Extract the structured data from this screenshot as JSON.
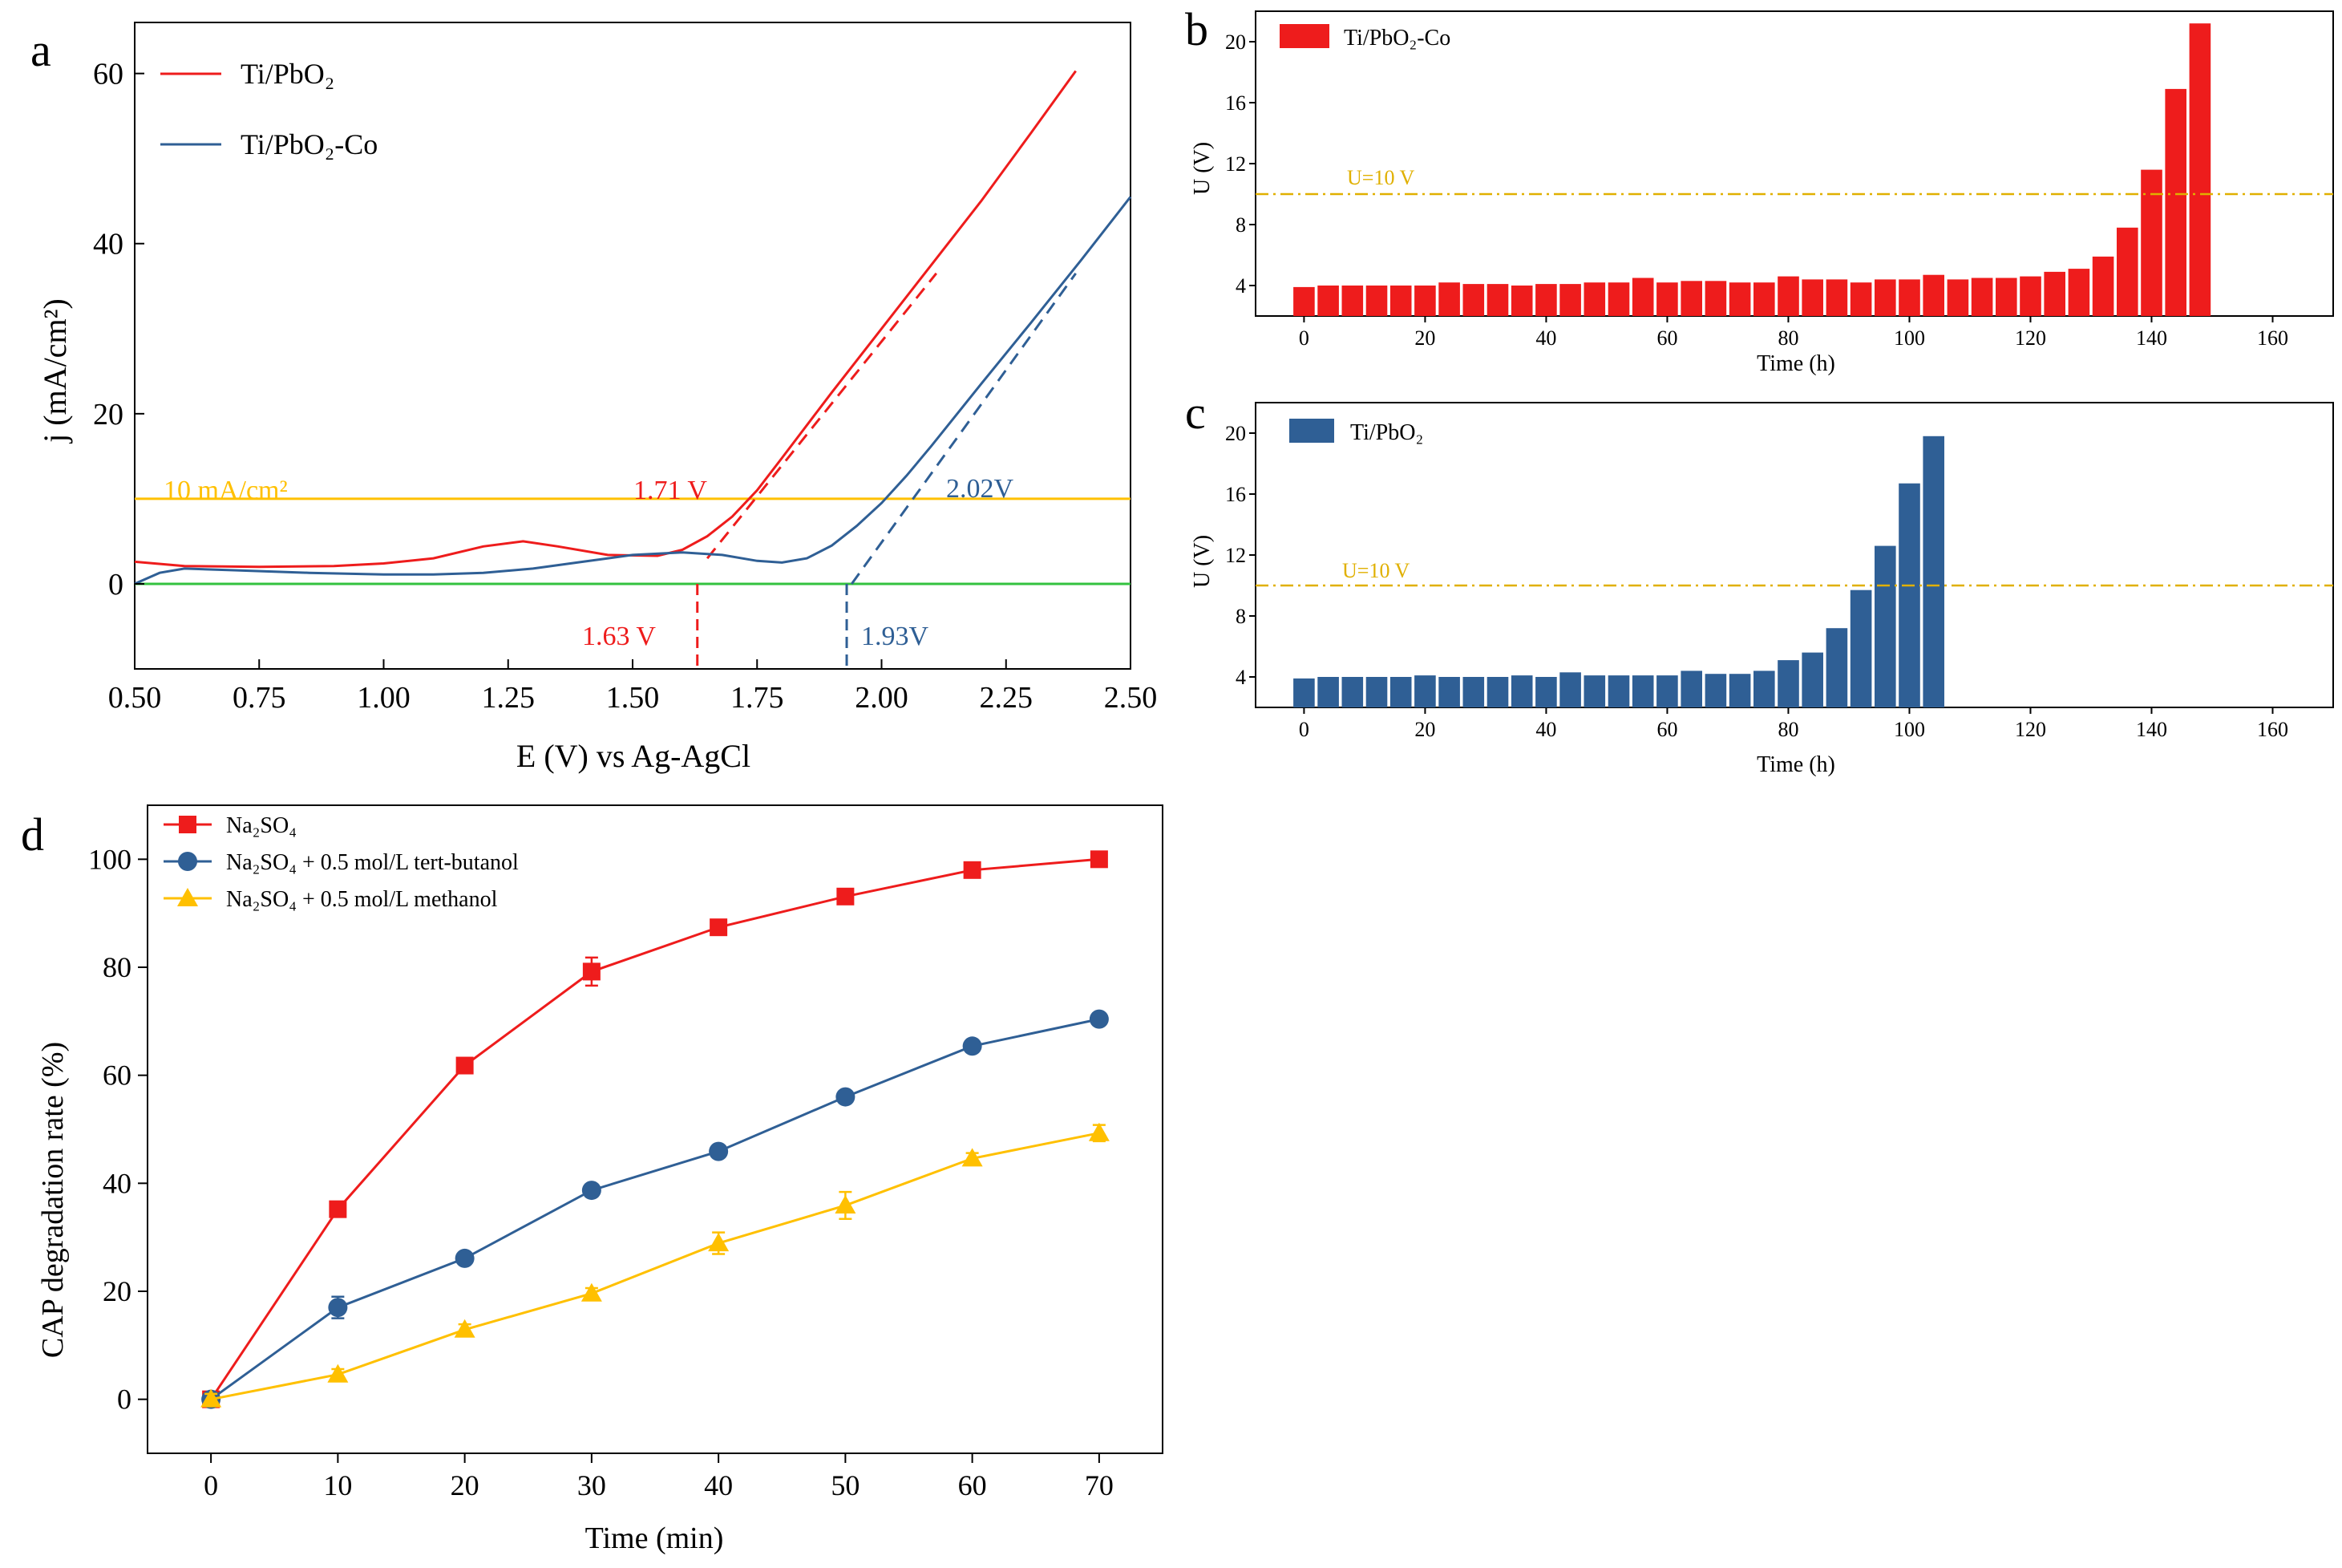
{
  "chart_data": [
    {
      "panel": "a",
      "type": "line",
      "xlabel": "E (V) vs Ag-AgCl",
      "ylabel": "j (mA/cm²)",
      "xlim": [
        0.5,
        2.5
      ],
      "ylim": [
        -10,
        66
      ],
      "x_ticks": [
        "0.50",
        "0.75",
        "1.00",
        "1.25",
        "1.50",
        "1.75",
        "2.00",
        "2.25",
        "2.50"
      ],
      "y_ticks": [
        "0",
        "20",
        "40",
        "60"
      ],
      "series": [
        {
          "name": "Ti/PbO₂",
          "color": "#ee1c1c",
          "points": [
            [
              0.5,
              2.6
            ],
            [
              0.6,
              2.1
            ],
            [
              0.75,
              2.0
            ],
            [
              0.9,
              2.1
            ],
            [
              1.0,
              2.4
            ],
            [
              1.1,
              3.0
            ],
            [
              1.2,
              4.4
            ],
            [
              1.28,
              5.0
            ],
            [
              1.35,
              4.4
            ],
            [
              1.45,
              3.4
            ],
            [
              1.55,
              3.3
            ],
            [
              1.6,
              4.0
            ],
            [
              1.65,
              5.6
            ],
            [
              1.7,
              7.9
            ],
            [
              1.75,
              11.0
            ],
            [
              1.8,
              14.8
            ],
            [
              1.9,
              22.5
            ],
            [
              2.0,
              30.0
            ],
            [
              2.1,
              37.5
            ],
            [
              2.2,
              45.0
            ],
            [
              2.3,
              53.0
            ],
            [
              2.39,
              60.3
            ]
          ]
        },
        {
          "name": "Ti/PbO₂-Co",
          "color": "#2f5f95",
          "points": [
            [
              0.5,
              0.0
            ],
            [
              0.55,
              1.3
            ],
            [
              0.6,
              1.8
            ],
            [
              0.7,
              1.6
            ],
            [
              0.85,
              1.3
            ],
            [
              1.0,
              1.1
            ],
            [
              1.1,
              1.1
            ],
            [
              1.2,
              1.3
            ],
            [
              1.3,
              1.8
            ],
            [
              1.4,
              2.6
            ],
            [
              1.5,
              3.4
            ],
            [
              1.6,
              3.7
            ],
            [
              1.68,
              3.4
            ],
            [
              1.75,
              2.7
            ],
            [
              1.8,
              2.5
            ],
            [
              1.85,
              3.0
            ],
            [
              1.9,
              4.5
            ],
            [
              1.95,
              6.8
            ],
            [
              2.0,
              9.5
            ],
            [
              2.05,
              12.7
            ],
            [
              2.1,
              16.2
            ],
            [
              2.2,
              23.5
            ],
            [
              2.3,
              30.7
            ],
            [
              2.4,
              38.0
            ],
            [
              2.5,
              45.5
            ]
          ]
        }
      ],
      "reference_lines": [
        {
          "label": "10 mA/cm²",
          "y": 10,
          "color": "#ffc000"
        },
        {
          "label": "",
          "y": 0,
          "color": "#33c23f"
        }
      ],
      "extrapolation_lines": [
        {
          "color": "#ee1c1c",
          "from": [
            1.65,
            3.0
          ],
          "to": [
            2.11,
            36.5
          ]
        },
        {
          "color": "#2f5f95",
          "from": [
            1.94,
            0.0
          ],
          "to": [
            2.39,
            36.5
          ]
        }
      ],
      "onset_markers": [
        {
          "x": 1.63,
          "color": "#ee1c1c"
        },
        {
          "x": 1.93,
          "color": "#2f5f95"
        }
      ],
      "annotations": {
        "ref_label": "10 mA/cm²",
        "red_at_10": "1.71 V",
        "red_onset": "1.63 V",
        "blue_at_10": "2.02V",
        "blue_onset": "1.93V"
      }
    },
    {
      "panel": "b",
      "type": "bar",
      "xlabel": "Time (h)",
      "ylabel": "U (V)",
      "xlim": [
        -8,
        170
      ],
      "ylim": [
        2,
        22
      ],
      "x_ticks": [
        "0",
        "20",
        "40",
        "60",
        "80",
        "100",
        "120",
        "140",
        "160"
      ],
      "y_ticks": [
        "4",
        "8",
        "12",
        "16",
        "20"
      ],
      "reference_label": "U=10 V",
      "reference_value": 10,
      "series": [
        {
          "name": "Ti/PbO₂-Co",
          "color": "#ee1c1c",
          "x": [
            0,
            4,
            8,
            12,
            16,
            20,
            24,
            28,
            32,
            36,
            40,
            44,
            48,
            52,
            56,
            60,
            64,
            68,
            72,
            76,
            80,
            84,
            88,
            92,
            96,
            100,
            104,
            108,
            112,
            116,
            120,
            124,
            128,
            132,
            136,
            140,
            144,
            148
          ],
          "values": [
            3.9,
            4.0,
            4.0,
            4.0,
            4.0,
            4.0,
            4.2,
            4.1,
            4.1,
            4.0,
            4.1,
            4.1,
            4.2,
            4.2,
            4.5,
            4.2,
            4.3,
            4.3,
            4.2,
            4.2,
            4.6,
            4.4,
            4.4,
            4.2,
            4.4,
            4.4,
            4.7,
            4.4,
            4.5,
            4.5,
            4.6,
            4.9,
            5.1,
            5.9,
            7.8,
            11.6,
            16.9,
            21.2
          ]
        }
      ]
    },
    {
      "panel": "c",
      "type": "bar",
      "xlabel": "Time (h)",
      "ylabel": "U (V)",
      "xlim": [
        -8,
        170
      ],
      "ylim": [
        2,
        22
      ],
      "x_ticks": [
        "0",
        "20",
        "40",
        "60",
        "80",
        "100",
        "120",
        "140",
        "160"
      ],
      "y_ticks": [
        "4",
        "8",
        "12",
        "16",
        "20"
      ],
      "reference_label": "U=10 V",
      "reference_value": 10,
      "series": [
        {
          "name": "Ti/PbO₂",
          "color": "#2f5f95",
          "x": [
            0,
            4,
            8,
            12,
            16,
            20,
            24,
            28,
            32,
            36,
            40,
            44,
            48,
            52,
            56,
            60,
            64,
            68,
            72,
            76,
            80,
            84,
            88,
            92,
            96,
            100,
            104
          ],
          "values": [
            3.9,
            4.0,
            4.0,
            4.0,
            4.0,
            4.1,
            4.0,
            4.0,
            4.0,
            4.1,
            4.0,
            4.3,
            4.1,
            4.1,
            4.1,
            4.1,
            4.4,
            4.2,
            4.2,
            4.4,
            5.1,
            5.6,
            7.2,
            9.7,
            12.6,
            16.7,
            19.8
          ]
        }
      ]
    },
    {
      "panel": "d",
      "type": "line",
      "xlabel": "Time (min)",
      "ylabel": "CAP degradation rate (%)",
      "xlim": [
        -5,
        75
      ],
      "ylim": [
        -10,
        110
      ],
      "x_ticks": [
        "0",
        "10",
        "20",
        "30",
        "40",
        "50",
        "60",
        "70"
      ],
      "y_ticks": [
        "0",
        "20",
        "40",
        "60",
        "80",
        "100"
      ],
      "x": [
        0,
        10,
        20,
        30,
        40,
        50,
        60,
        70
      ],
      "series": [
        {
          "name": "Na₂SO₄",
          "color": "#ee1c1c",
          "marker": "square",
          "values": [
            0,
            35.2,
            61.8,
            79.2,
            87.4,
            93.1,
            98.0,
            100.0
          ],
          "errors": [
            1.0,
            1.0,
            1.0,
            2.6,
            1.0,
            1.0,
            1.0,
            1.0
          ]
        },
        {
          "name": "Na₂SO₄ + 0.5 mol/L tert-butanol",
          "color": "#2f5f95",
          "marker": "circle",
          "values": [
            0,
            17.0,
            26.1,
            38.7,
            45.9,
            56.0,
            65.4,
            70.4
          ],
          "errors": [
            1.0,
            2.0,
            1.0,
            1.0,
            1.0,
            1.0,
            1.0,
            1.0
          ]
        },
        {
          "name": "Na₂SO₄ + 0.5 mol/L methanol",
          "color": "#ffc000",
          "marker": "triangle",
          "values": [
            0,
            4.6,
            12.9,
            19.6,
            28.9,
            35.9,
            44.6,
            49.3
          ],
          "errors": [
            1.0,
            1.0,
            1.0,
            1.0,
            2.0,
            2.5,
            1.0,
            1.5
          ]
        }
      ]
    }
  ],
  "panel_labels": {
    "a": "a",
    "b": "b",
    "c": "c",
    "d": "d"
  }
}
